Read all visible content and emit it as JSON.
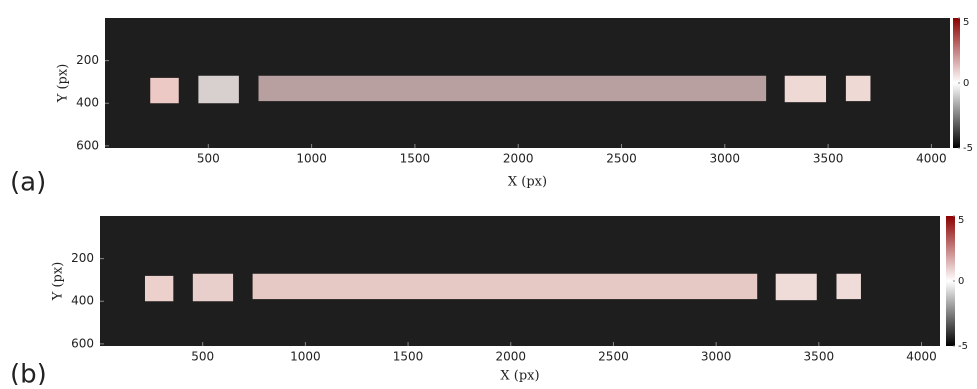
{
  "chart_data": [
    {
      "type": "heatmap",
      "panel_label": "(a)",
      "xlabel": "X (px)",
      "ylabel": "Y (px)",
      "xlim": [
        0,
        4090
      ],
      "ylim": [
        610,
        0
      ],
      "xticks": [
        500,
        1000,
        1500,
        2000,
        2500,
        3000,
        3500,
        4000
      ],
      "yticks": [
        200,
        400,
        600
      ],
      "background": "#1e1e1e",
      "colormap": [
        "#000000",
        "#ffffff",
        "#8b0000"
      ],
      "clim": [
        -5,
        5
      ],
      "cticks": [
        -5,
        0,
        5
      ],
      "regions": [
        {
          "x": [
            219,
            357
          ],
          "y": [
            281,
            400
          ],
          "color": "#ecc9c4"
        },
        {
          "x": [
            452,
            648
          ],
          "y": [
            271,
            400
          ],
          "color": "#d8cfcf"
        },
        {
          "x": [
            743,
            3200
          ],
          "y": [
            271,
            390
          ],
          "color": "#b8a0a0"
        },
        {
          "x": [
            3290,
            3490
          ],
          "y": [
            271,
            395
          ],
          "color": "#efd9d4"
        },
        {
          "x": [
            3586,
            3705
          ],
          "y": [
            271,
            390
          ],
          "color": "#efd9d4"
        }
      ]
    },
    {
      "type": "heatmap",
      "panel_label": "(b)",
      "xlabel": "X (px)",
      "ylabel": "Y (px)",
      "xlim": [
        0,
        4090
      ],
      "ylim": [
        610,
        0
      ],
      "xticks": [
        500,
        1000,
        1500,
        2000,
        2500,
        3000,
        3500,
        4000
      ],
      "yticks": [
        200,
        400,
        600
      ],
      "background": "#1e1e1e",
      "colormap": [
        "#000000",
        "#ffffff",
        "#8b0000"
      ],
      "clim": [
        -5,
        5
      ],
      "cticks": [
        -5,
        0,
        5
      ],
      "regions": [
        {
          "x": [
            219,
            357
          ],
          "y": [
            281,
            400
          ],
          "color": "#ecd0cc"
        },
        {
          "x": [
            452,
            648
          ],
          "y": [
            271,
            400
          ],
          "color": "#e9cfcc"
        },
        {
          "x": [
            743,
            3200
          ],
          "y": [
            271,
            390
          ],
          "color": "#e6c8c4"
        },
        {
          "x": [
            3290,
            3490
          ],
          "y": [
            271,
            395
          ],
          "color": "#efdcd8"
        },
        {
          "x": [
            3586,
            3705
          ],
          "y": [
            271,
            390
          ],
          "color": "#efdcd8"
        }
      ]
    }
  ]
}
